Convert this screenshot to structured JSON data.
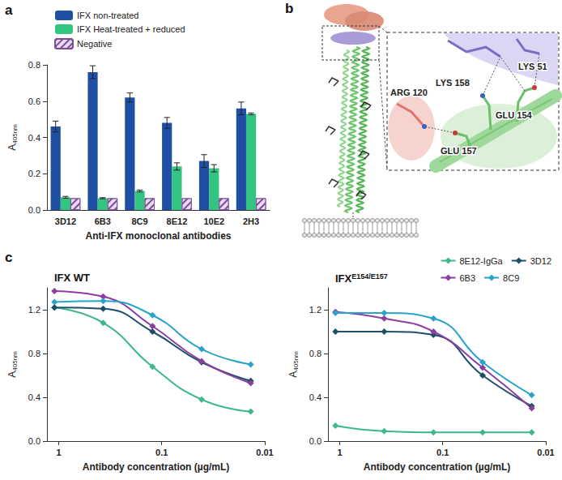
{
  "chart_data": [
    {
      "panel": "a",
      "type": "bar",
      "categories": [
        "3D12",
        "6B3",
        "8C9",
        "8E12",
        "10E2",
        "2H3"
      ],
      "series": [
        {
          "name": "IFX non-treated",
          "color": "#1f4fa3",
          "values": [
            0.46,
            0.76,
            0.62,
            0.48,
            0.27,
            0.56
          ],
          "errors": [
            0.03,
            0.035,
            0.025,
            0.03,
            0.035,
            0.035
          ]
        },
        {
          "name": "IFX Heat-treated + reduced",
          "color": "#33c482",
          "values": [
            0.07,
            0.065,
            0.105,
            0.24,
            0.23,
            0.53
          ],
          "errors": [
            0.005,
            0.003,
            0.005,
            0.02,
            0.02,
            0.005
          ]
        },
        {
          "name": "Negative",
          "color": "#e9d9f0",
          "marker": "hatch",
          "values": [
            0.065,
            0.065,
            0.065,
            0.065,
            0.065,
            0.065
          ]
        }
      ],
      "xlabel": "Anti-IFX monoclonal antibodies",
      "ylabel": "A",
      "ylabel_sub": "405nm",
      "ylim": [
        0,
        0.8
      ],
      "yticks": [
        {
          "value": 0,
          "label": "0.0"
        },
        {
          "value": 0.2,
          "label": "0.2"
        },
        {
          "value": 0.4,
          "label": "0.4"
        },
        {
          "value": 0.6,
          "label": "0.6"
        },
        {
          "value": 0.8,
          "label": "0.8"
        }
      ],
      "legend": "top-left"
    },
    {
      "panel": "c",
      "type": "line",
      "title": "IFX WT",
      "log": "x",
      "marker": "diamond",
      "x": [
        1.1,
        0.37,
        0.123,
        0.041,
        0.0137
      ],
      "series": [
        {
          "name": "8E12-IgGa",
          "color": "#3cb88a",
          "values": [
            1.22,
            1.08,
            0.68,
            0.38,
            0.27
          ]
        },
        {
          "name": "3D12",
          "color": "#1f4e68",
          "values": [
            1.22,
            1.21,
            1.0,
            0.72,
            0.55
          ]
        },
        {
          "name": "6B3",
          "color": "#8b3e9f",
          "values": [
            1.37,
            1.32,
            1.05,
            0.73,
            0.53
          ]
        },
        {
          "name": "8C9",
          "color": "#2aa3c9",
          "values": [
            1.27,
            1.28,
            1.15,
            0.84,
            0.7
          ]
        }
      ],
      "xlabel": "Antibody concentration (µg/mL)",
      "ylabel": "A",
      "ylabel_sub": "405nm",
      "xlim": [
        1.3,
        0.01
      ],
      "xticks": [
        1,
        0.1,
        0.01
      ],
      "ylim": [
        0,
        1.4
      ],
      "yticks": [
        {
          "value": 0,
          "label": "0.0"
        },
        {
          "value": 0.4,
          "label": "0.4"
        },
        {
          "value": 0.8,
          "label": "0.8"
        },
        {
          "value": 1.2,
          "label": "1.2"
        }
      ]
    },
    {
      "type": "line",
      "title": "IFX",
      "title_sup": "E154/E157",
      "log": "x",
      "marker": "diamond",
      "x": [
        1.1,
        0.37,
        0.123,
        0.041,
        0.0137
      ],
      "series": [
        {
          "name": "8E12-IgGa",
          "color": "#3cb88a",
          "values": [
            0.14,
            0.09,
            0.08,
            0.08,
            0.08
          ]
        },
        {
          "name": "3D12",
          "color": "#1f4e68",
          "values": [
            1.0,
            1.0,
            0.97,
            0.6,
            0.32
          ]
        },
        {
          "name": "6B3",
          "color": "#8b3e9f",
          "values": [
            1.18,
            1.12,
            1.0,
            0.67,
            0.3
          ]
        },
        {
          "name": "8C9",
          "color": "#2aa3c9",
          "values": [
            1.17,
            1.17,
            1.12,
            0.72,
            0.42
          ]
        }
      ],
      "xlabel": "Antibody concentration (µg/mL)",
      "ylabel": "A",
      "ylabel_sub": "405nm",
      "xlim": [
        1.3,
        0.01
      ],
      "xticks": [
        1,
        0.1,
        0.01
      ],
      "ylim": [
        0,
        1.4
      ],
      "yticks": [
        {
          "value": 0,
          "label": "0.0"
        },
        {
          "value": 0.4,
          "label": "0.4"
        },
        {
          "value": 0.8,
          "label": "0.8"
        },
        {
          "value": 1.2,
          "label": "1.2"
        }
      ],
      "legend": "top-right"
    }
  ],
  "diagram": {
    "panel": "b",
    "labels": [
      "LYS 51",
      "LYS 158",
      "GLU 154",
      "ARG 120",
      "GLU 157"
    ]
  }
}
